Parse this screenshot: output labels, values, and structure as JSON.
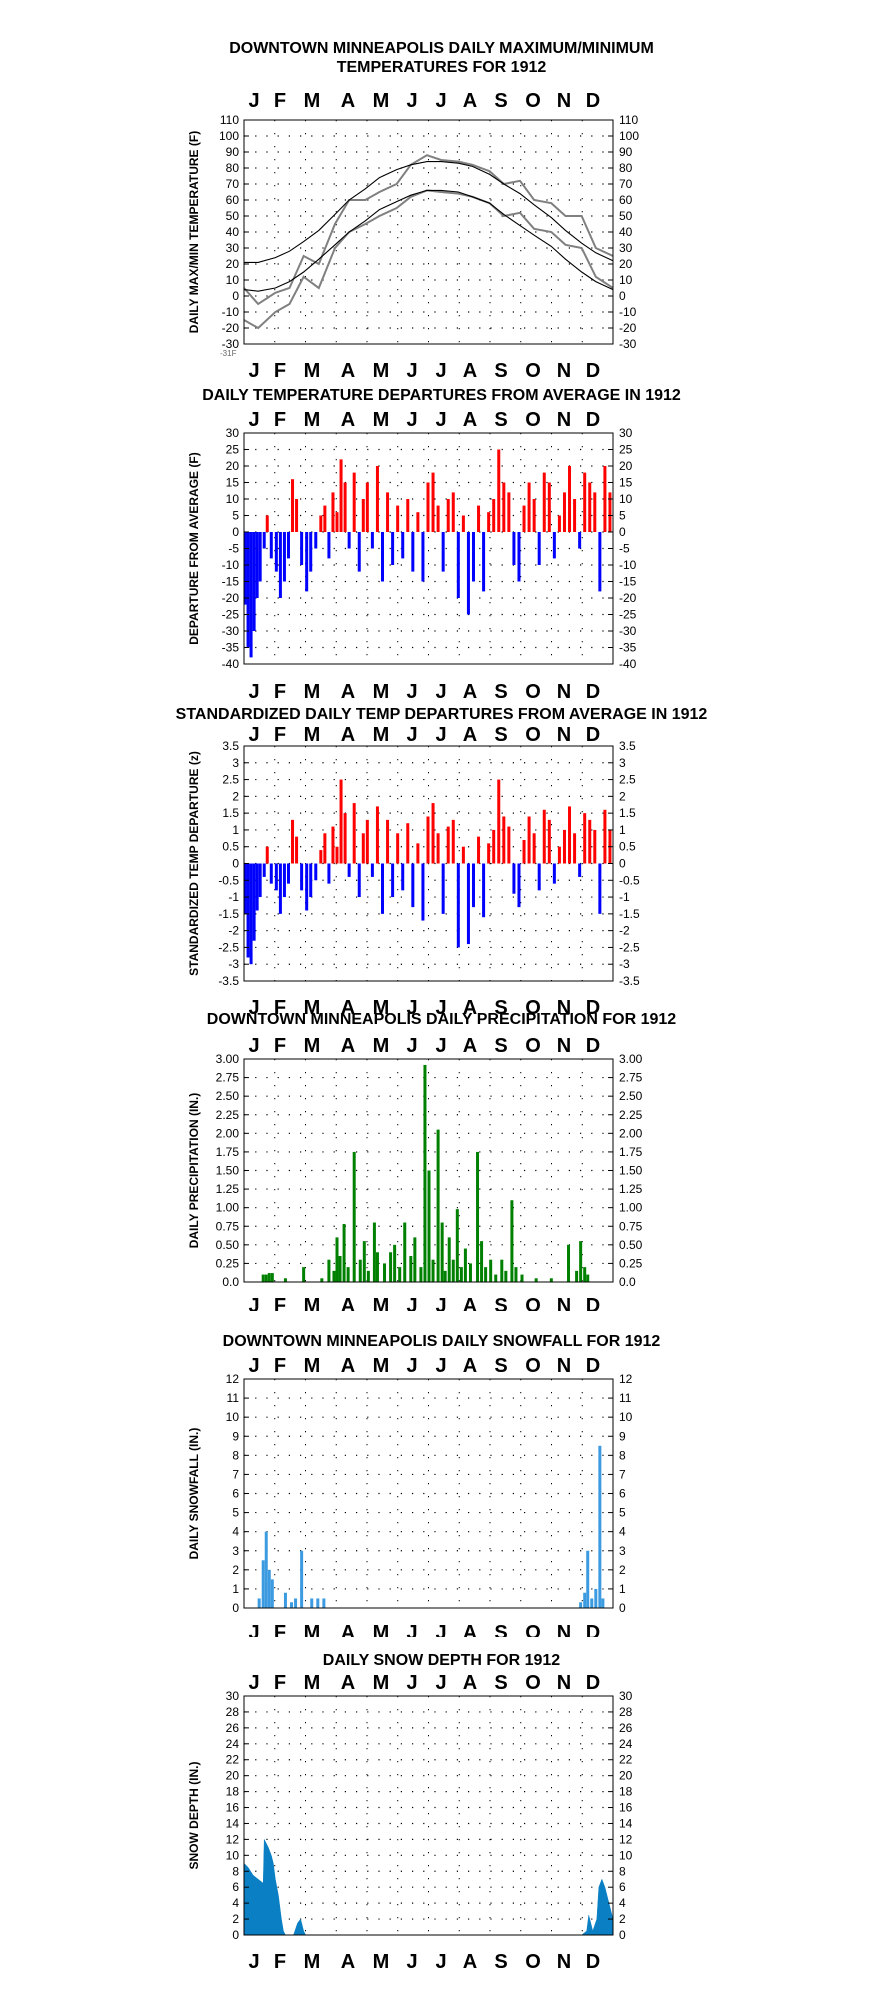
{
  "chart_data": [
    {
      "type": "line",
      "title": "DOWNTOWN MINNEAPOLIS DAILY MAXIMUM/MINIMUM",
      "subtitle": "TEMPERATURES FOR 1912",
      "ylabel": "DAILY MAX/MIN TEMPERATURE (F)",
      "ylim": [
        -30,
        110
      ],
      "yticks": [
        -30,
        -20,
        -10,
        0,
        10,
        20,
        30,
        40,
        50,
        60,
        70,
        80,
        90,
        100,
        110
      ],
      "months": [
        "J",
        "F",
        "M",
        "A",
        "M",
        "J",
        "J",
        "A",
        "S",
        "O",
        "N",
        "D"
      ],
      "annotation": "-31F",
      "x": [
        1,
        15,
        32,
        46,
        60,
        75,
        91,
        105,
        121,
        135,
        152,
        166,
        182,
        196,
        213,
        227,
        244,
        258,
        274,
        288,
        305,
        319,
        335,
        349,
        366
      ],
      "series": [
        {
          "values": [
            5,
            -5,
            2,
            5,
            25,
            20,
            45,
            60,
            60,
            65,
            70,
            82,
            88,
            85,
            84,
            82,
            78,
            70,
            72,
            60,
            58,
            50,
            50,
            30,
            25
          ]
        },
        {
          "values": [
            -15,
            -20,
            -10,
            -5,
            12,
            5,
            30,
            40,
            45,
            50,
            55,
            62,
            66,
            65,
            64,
            62,
            58,
            50,
            52,
            42,
            40,
            32,
            30,
            12,
            5
          ]
        },
        {
          "values": [
            21,
            21,
            24,
            28,
            34,
            41,
            51,
            60,
            67,
            74,
            79,
            82,
            84,
            84,
            83,
            81,
            76,
            70,
            64,
            57,
            49,
            41,
            33,
            27,
            22
          ]
        },
        {
          "values": [
            4,
            3,
            5,
            9,
            15,
            23,
            32,
            40,
            47,
            54,
            59,
            63,
            66,
            66,
            65,
            62,
            58,
            51,
            44,
            38,
            31,
            23,
            15,
            9,
            4
          ]
        }
      ]
    },
    {
      "type": "bar",
      "title": "DAILY TEMPERATURE DEPARTURES FROM AVERAGE IN 1912",
      "ylabel": "DEPARTURE FROM AVERAGE (F)",
      "ylim": [
        -40,
        30
      ],
      "yticks": [
        -40,
        -35,
        -30,
        -25,
        -20,
        -15,
        -10,
        -5,
        0,
        5,
        10,
        15,
        20,
        25,
        30
      ],
      "months": [
        "J",
        "F",
        "M",
        "A",
        "M",
        "J",
        "J",
        "A",
        "S",
        "O",
        "N",
        "D"
      ],
      "x": [
        2,
        5,
        8,
        11,
        14,
        17,
        21,
        24,
        28,
        33,
        37,
        41,
        45,
        49,
        53,
        58,
        63,
        67,
        72,
        77,
        81,
        85,
        89,
        93,
        97,
        101,
        105,
        110,
        115,
        119,
        123,
        128,
        133,
        138,
        143,
        148,
        153,
        158,
        163,
        168,
        173,
        178,
        183,
        188,
        193,
        198,
        203,
        208,
        213,
        218,
        223,
        228,
        233,
        238,
        243,
        248,
        253,
        258,
        263,
        268,
        273,
        278,
        283,
        288,
        293,
        298,
        303,
        308,
        313,
        318,
        323,
        328,
        333,
        338,
        343,
        348,
        353,
        358,
        363
      ],
      "values": [
        -22,
        -35,
        -38,
        -30,
        -20,
        -15,
        -5,
        5,
        -8,
        -12,
        -20,
        -15,
        -8,
        16,
        10,
        -10,
        -18,
        -12,
        -5,
        5,
        8,
        -8,
        12,
        6,
        22,
        15,
        -5,
        18,
        -12,
        10,
        15,
        -5,
        20,
        -15,
        12,
        -10,
        8,
        -8,
        10,
        -12,
        6,
        -15,
        15,
        18,
        8,
        -12,
        10,
        12,
        -20,
        5,
        -25,
        -15,
        8,
        -18,
        6,
        10,
        25,
        15,
        12,
        -10,
        -15,
        8,
        15,
        10,
        -10,
        18,
        15,
        -8,
        5,
        12,
        20,
        10,
        -5,
        18,
        15,
        12,
        -18,
        20,
        12
      ]
    },
    {
      "type": "bar",
      "title": "STANDARDIZED DAILY TEMP DEPARTURES FROM AVERAGE IN 1912",
      "ylabel": "STANDARDIZED TEMP DEPARTURE (z)",
      "ylim": [
        -3.5,
        3.5
      ],
      "yticks": [
        -3.5,
        -3.0,
        -2.5,
        -2.0,
        -1.5,
        -1.0,
        -0.5,
        0.0,
        0.5,
        1.0,
        1.5,
        2.0,
        2.5,
        3.0,
        3.5
      ],
      "months": [
        "J",
        "F",
        "M",
        "A",
        "M",
        "J",
        "J",
        "A",
        "S",
        "O",
        "N",
        "D"
      ],
      "x": [
        2,
        5,
        8,
        11,
        14,
        17,
        21,
        24,
        28,
        33,
        37,
        41,
        45,
        49,
        53,
        58,
        63,
        67,
        72,
        77,
        81,
        85,
        89,
        93,
        97,
        101,
        105,
        110,
        115,
        119,
        123,
        128,
        133,
        138,
        143,
        148,
        153,
        158,
        163,
        168,
        173,
        178,
        183,
        188,
        193,
        198,
        203,
        208,
        213,
        218,
        223,
        228,
        233,
        238,
        243,
        248,
        253,
        258,
        263,
        268,
        273,
        278,
        283,
        288,
        293,
        298,
        303,
        308,
        313,
        318,
        323,
        328,
        333,
        338,
        343,
        348,
        353,
        358,
        363
      ],
      "values": [
        -1.5,
        -2.8,
        -3.0,
        -2.3,
        -1.4,
        -1.0,
        -0.4,
        0.5,
        -0.6,
        -0.8,
        -1.5,
        -1.0,
        -0.6,
        1.3,
        0.8,
        -0.8,
        -1.4,
        -1.0,
        -0.5,
        0.4,
        0.9,
        -0.6,
        1.1,
        0.5,
        2.5,
        1.5,
        -0.4,
        1.8,
        -1.0,
        0.9,
        1.3,
        -0.4,
        1.7,
        -1.5,
        1.3,
        -1.0,
        0.9,
        -0.8,
        1.2,
        -1.3,
        0.6,
        -1.7,
        1.4,
        1.8,
        0.9,
        -1.5,
        1.1,
        1.3,
        -2.5,
        0.5,
        -2.4,
        -1.3,
        0.8,
        -1.6,
        0.6,
        1.0,
        2.5,
        1.4,
        1.1,
        -0.9,
        -1.3,
        0.7,
        1.4,
        0.9,
        -0.8,
        1.6,
        1.3,
        -0.6,
        0.5,
        1.0,
        1.7,
        0.9,
        -0.4,
        1.5,
        1.3,
        1.0,
        -1.5,
        1.6,
        1.0
      ]
    },
    {
      "type": "bar",
      "title": "DOWNTOWN MINNEAPOLIS DAILY PRECIPITATION FOR 1912",
      "ylabel": "DAILY PRECIPITATION (IN.)",
      "ylim": [
        0,
        3
      ],
      "yticks": [
        "0.0",
        "0.25",
        "0.50",
        "0.75",
        "1.00",
        "1.25",
        "1.50",
        "1.75",
        "2.00",
        "2.25",
        "2.50",
        "2.75",
        "3.00"
      ],
      "months": [
        "J",
        "F",
        "M",
        "A",
        "M",
        "J",
        "J",
        "A",
        "S",
        "O",
        "N",
        "D"
      ],
      "x": [
        20,
        23,
        26,
        29,
        42,
        60,
        78,
        85,
        90,
        93,
        96,
        100,
        104,
        110,
        116,
        120,
        124,
        130,
        133,
        140,
        146,
        150,
        155,
        160,
        166,
        170,
        176,
        180,
        184,
        188,
        193,
        197,
        200,
        204,
        208,
        212,
        216,
        220,
        225,
        232,
        236,
        240,
        245,
        250,
        256,
        260,
        266,
        270,
        276,
        290,
        305,
        322,
        330,
        334,
        338,
        341
      ],
      "values": [
        0.1,
        0.1,
        0.12,
        0.12,
        0.05,
        0.2,
        0.05,
        0.3,
        0.15,
        0.6,
        0.35,
        0.78,
        0.2,
        1.75,
        0.3,
        0.55,
        0.15,
        0.8,
        0.4,
        0.25,
        0.4,
        0.5,
        0.2,
        0.8,
        0.35,
        0.6,
        0.2,
        2.92,
        1.5,
        0.3,
        2.05,
        0.8,
        0.15,
        0.6,
        0.3,
        0.98,
        0.2,
        0.45,
        0.25,
        1.75,
        0.55,
        0.2,
        0.3,
        0.1,
        0.3,
        0.15,
        1.1,
        0.2,
        0.1,
        0.05,
        0.05,
        0.5,
        0.15,
        0.55,
        0.2,
        0.1
      ]
    },
    {
      "type": "bar",
      "title": "DOWNTOWN MINNEAPOLIS DAILY SNOWFALL FOR 1912",
      "ylabel": "DAILY SNOWFALL (IN.)",
      "ylim": [
        0,
        12
      ],
      "yticks": [
        0,
        1,
        2,
        3,
        4,
        5,
        6,
        7,
        8,
        9,
        10,
        11,
        12
      ],
      "months": [
        "J",
        "F",
        "M",
        "A",
        "M",
        "J",
        "J",
        "A",
        "S",
        "O",
        "N",
        "D"
      ],
      "x": [
        16,
        20,
        23,
        26,
        29,
        42,
        48,
        52,
        58,
        68,
        74,
        80,
        334,
        338,
        341,
        345,
        349,
        353,
        356
      ],
      "values": [
        0.5,
        2.5,
        4.0,
        2.0,
        1.5,
        0.8,
        0.3,
        0.5,
        3.0,
        0.5,
        0.5,
        0.5,
        0.3,
        0.8,
        3.0,
        0.5,
        1.0,
        8.5,
        0.5
      ]
    },
    {
      "type": "area",
      "title": "DAILY SNOW DEPTH FOR 1912",
      "ylabel": "SNOW DEPTH (IN.)",
      "ylim": [
        0,
        30
      ],
      "yticks": [
        0,
        2,
        4,
        6,
        8,
        10,
        12,
        14,
        16,
        18,
        20,
        22,
        24,
        26,
        28,
        30
      ],
      "months": [
        "J",
        "F",
        "M",
        "A",
        "M",
        "J",
        "J",
        "A",
        "S",
        "O",
        "N",
        "D"
      ],
      "x": [
        1,
        5,
        10,
        15,
        20,
        21,
        25,
        28,
        30,
        32,
        35,
        38,
        40,
        42,
        50,
        54,
        57,
        60,
        62,
        66,
        335,
        340,
        342,
        346,
        350,
        352,
        355,
        358,
        362,
        366
      ],
      "values": [
        9,
        8.5,
        7.5,
        7,
        6.5,
        12,
        11,
        10,
        9,
        7,
        5,
        2,
        0.5,
        0,
        0,
        1.5,
        2,
        0.5,
        0,
        0,
        0,
        0.5,
        2.5,
        0.5,
        2,
        6,
        7,
        6,
        4,
        2
      ]
    }
  ]
}
